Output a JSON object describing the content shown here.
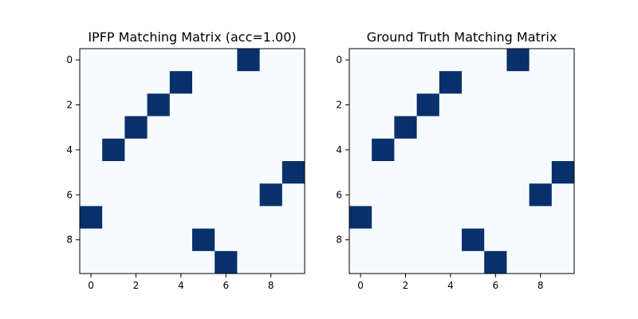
{
  "chart_data": [
    {
      "type": "heatmap",
      "title": "IPFP Matching Matrix (acc=1.00)",
      "xlabel": "",
      "ylabel": "",
      "rows": 10,
      "cols": 10,
      "x_ticks": [
        0,
        2,
        4,
        6,
        8
      ],
      "y_ticks": [
        0,
        2,
        4,
        6,
        8
      ],
      "matches": [
        {
          "row": 0,
          "col": 7
        },
        {
          "row": 1,
          "col": 4
        },
        {
          "row": 2,
          "col": 3
        },
        {
          "row": 3,
          "col": 2
        },
        {
          "row": 4,
          "col": 1
        },
        {
          "row": 5,
          "col": 9
        },
        {
          "row": 6,
          "col": 8
        },
        {
          "row": 7,
          "col": 0
        },
        {
          "row": 8,
          "col": 5
        },
        {
          "row": 9,
          "col": 6
        }
      ],
      "colors": {
        "zero": "#f7fbff",
        "one": "#08306b"
      }
    },
    {
      "type": "heatmap",
      "title": "Ground Truth Matching Matrix",
      "xlabel": "",
      "ylabel": "",
      "rows": 10,
      "cols": 10,
      "x_ticks": [
        0,
        2,
        4,
        6,
        8
      ],
      "y_ticks": [
        0,
        2,
        4,
        6,
        8
      ],
      "matches": [
        {
          "row": 0,
          "col": 7
        },
        {
          "row": 1,
          "col": 4
        },
        {
          "row": 2,
          "col": 3
        },
        {
          "row": 3,
          "col": 2
        },
        {
          "row": 4,
          "col": 1
        },
        {
          "row": 5,
          "col": 9
        },
        {
          "row": 6,
          "col": 8
        },
        {
          "row": 7,
          "col": 0
        },
        {
          "row": 8,
          "col": 5
        },
        {
          "row": 9,
          "col": 6
        }
      ],
      "colors": {
        "zero": "#f7fbff",
        "one": "#08306b"
      }
    }
  ]
}
